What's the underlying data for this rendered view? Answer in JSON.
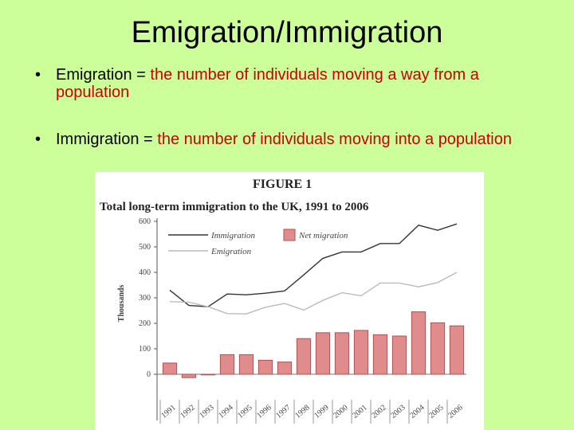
{
  "slide": {
    "title": "Emigration/Immigration",
    "bullets": [
      {
        "symbol": "•",
        "term": "Emigration = ",
        "definition": "the number of individuals moving a way from a population"
      },
      {
        "symbol": "•",
        "term": "Immigration = ",
        "definition": "the number of individuals moving into a population"
      }
    ],
    "colors": {
      "background": "#ccff99",
      "definition_text": "#cc0000",
      "title_text": "#000000"
    }
  },
  "chart_data": {
    "type": "bar",
    "figure_label": "FIGURE 1",
    "title": "Total long-term immigration to the UK, 1991 to 2006",
    "ylabel": "Thousands",
    "xlabel": "",
    "ylim": [
      -50,
      600
    ],
    "yticks": [
      0,
      100,
      200,
      300,
      400,
      500,
      600
    ],
    "grid": false,
    "legend_position": "top-left",
    "categories": [
      "1991",
      "1992",
      "1993",
      "1994",
      "1995",
      "1996",
      "1997",
      "1998",
      "1999",
      "2000",
      "2001",
      "2002",
      "2003",
      "2004",
      "2005",
      "2006"
    ],
    "series": [
      {
        "name": "Immigration",
        "type": "line",
        "color": "#333333",
        "values": [
          330,
          270,
          265,
          315,
          312,
          318,
          327,
          390,
          455,
          480,
          480,
          513,
          513,
          585,
          565,
          590
        ]
      },
      {
        "name": "Emigration",
        "type": "line",
        "color": "#bbbbbb",
        "values": [
          285,
          283,
          265,
          238,
          237,
          263,
          278,
          252,
          290,
          320,
          308,
          358,
          358,
          343,
          360,
          400
        ]
      },
      {
        "name": "Net migration",
        "type": "bar",
        "color": "#e08c8c",
        "values": [
          44,
          -13,
          0,
          77,
          77,
          55,
          48,
          140,
          163,
          163,
          172,
          155,
          150,
          245,
          202,
          190
        ]
      }
    ]
  }
}
